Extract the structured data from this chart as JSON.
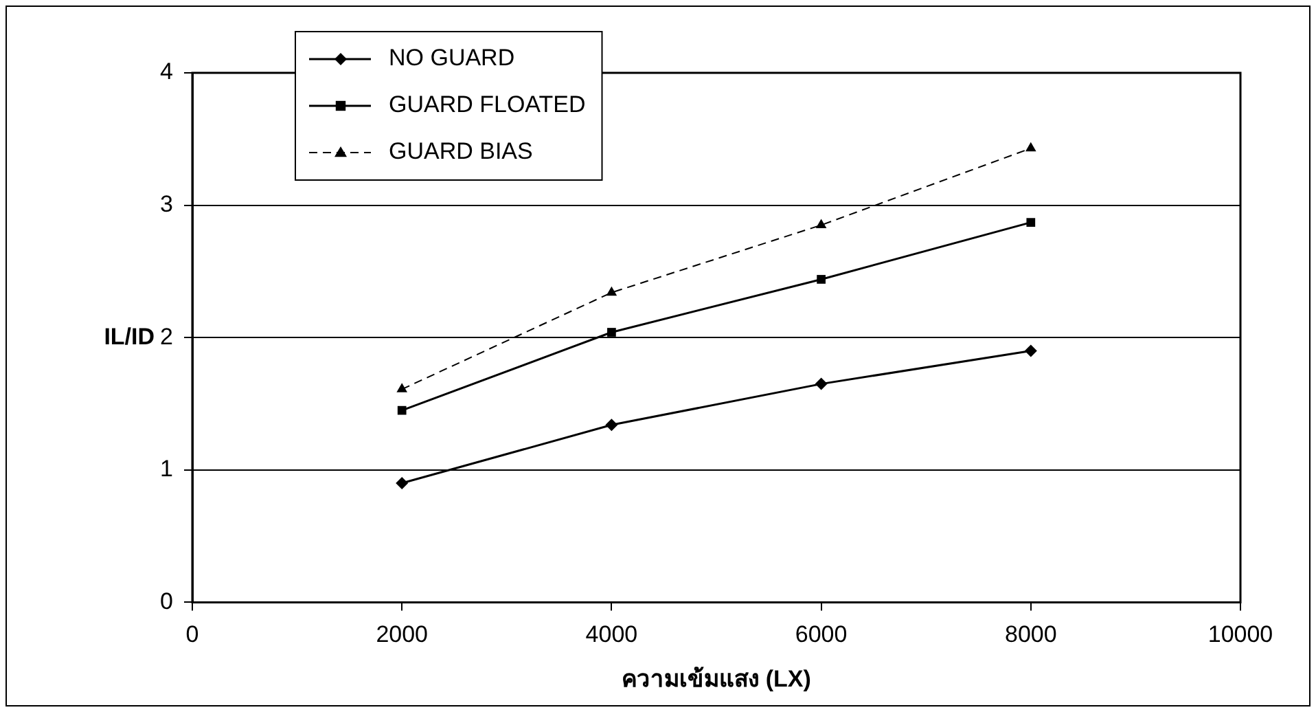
{
  "chart_data": {
    "type": "line",
    "xlabel": "ความเข้มแสง (LX)",
    "ylabel": "IL/ID",
    "x": [
      2000,
      4000,
      6000,
      8000
    ],
    "series": [
      {
        "name": "NO GUARD",
        "color": "#000000",
        "marker": "diamond",
        "line_style": "solid",
        "values": [
          0.9,
          1.34,
          1.65,
          1.9
        ]
      },
      {
        "name": "GUARD FLOATED",
        "color": "#000000",
        "marker": "square",
        "line_style": "solid",
        "values": [
          1.45,
          2.04,
          2.44,
          2.87
        ]
      },
      {
        "name": "GUARD BIAS",
        "color": "#000000",
        "marker": "triangle",
        "line_style": "dashed",
        "values": [
          1.61,
          2.34,
          2.85,
          3.43
        ]
      }
    ],
    "xlim": [
      0,
      10000
    ],
    "xticks": [
      0,
      2000,
      4000,
      6000,
      8000,
      10000
    ],
    "ylim": [
      0,
      4
    ],
    "yticks": [
      0,
      1,
      2,
      3,
      4
    ],
    "grid": "y",
    "legend": "top left"
  }
}
